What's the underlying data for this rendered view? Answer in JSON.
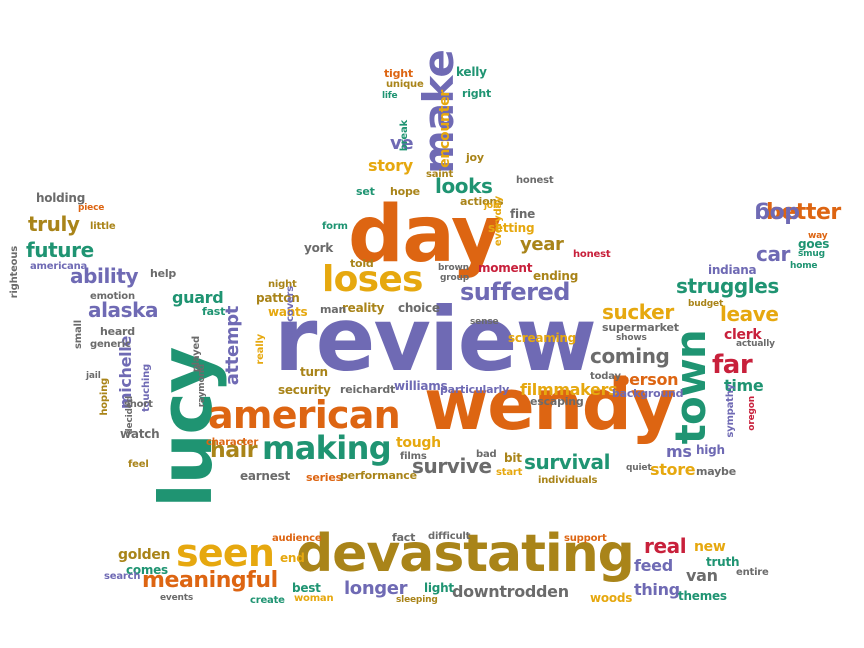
{
  "palette": {
    "purple": "#6f6ab4",
    "orange": "#dd6512",
    "teal": "#1f9472",
    "gold": "#e6a80f",
    "olive": "#a98419",
    "gray": "#6b6b6b",
    "red": "#c8203b"
  },
  "words": [
    {
      "id": "review",
      "text": "review",
      "color": "purple"
    },
    {
      "id": "wendy",
      "text": "wendy",
      "color": "orange"
    },
    {
      "id": "lucy",
      "text": "lucy",
      "color": "teal"
    },
    {
      "id": "day",
      "text": "day",
      "color": "orange"
    },
    {
      "id": "devastating",
      "text": "devastating",
      "color": "olive"
    },
    {
      "id": "american",
      "text": "american",
      "color": "orange"
    },
    {
      "id": "town",
      "text": "town",
      "color": "teal"
    },
    {
      "id": "make",
      "text": "make",
      "color": "purple"
    },
    {
      "id": "loses",
      "text": "loses",
      "color": "gold"
    },
    {
      "id": "making",
      "text": "making",
      "color": "teal"
    },
    {
      "id": "suffered",
      "text": "suffered",
      "color": "purple"
    },
    {
      "id": "seen",
      "text": "seen",
      "color": "gold"
    },
    {
      "id": "meaningful",
      "text": "meaningful",
      "color": "orange"
    },
    {
      "id": "hair",
      "text": "hair",
      "color": "olive"
    },
    {
      "id": "survive",
      "text": "survive",
      "color": "gray"
    },
    {
      "id": "survival",
      "text": "survival",
      "color": "teal"
    },
    {
      "id": "struggles",
      "text": "struggles",
      "color": "teal"
    },
    {
      "id": "sucker",
      "text": "sucker",
      "color": "gold"
    },
    {
      "id": "leave",
      "text": "leave",
      "color": "gold"
    },
    {
      "id": "far",
      "text": "far",
      "color": "red"
    },
    {
      "id": "coming",
      "text": "coming",
      "color": "gray"
    },
    {
      "id": "better",
      "text": "better",
      "color": "orange"
    },
    {
      "id": "dog",
      "text": "dog",
      "color": "purple"
    },
    {
      "id": "car",
      "text": "car",
      "color": "purple"
    },
    {
      "id": "alaska",
      "text": "alaska",
      "color": "purple"
    },
    {
      "id": "ability",
      "text": "ability",
      "color": "purple"
    },
    {
      "id": "truly",
      "text": "truly",
      "color": "olive"
    },
    {
      "id": "future",
      "text": "future",
      "color": "teal"
    },
    {
      "id": "looks",
      "text": "looks",
      "color": "teal"
    },
    {
      "id": "year",
      "text": "year",
      "color": "olive"
    },
    {
      "id": "story",
      "text": "story",
      "color": "gold"
    },
    {
      "id": "ve",
      "text": "ve",
      "color": "purple"
    },
    {
      "id": "encounter",
      "text": "encounter",
      "color": "gold"
    },
    {
      "id": "filmmakers",
      "text": "filmmakers",
      "color": "gold"
    },
    {
      "id": "person",
      "text": "person",
      "color": "orange"
    },
    {
      "id": "ms",
      "text": "ms",
      "color": "purple"
    },
    {
      "id": "store",
      "text": "store",
      "color": "gold"
    },
    {
      "id": "time",
      "text": "time",
      "color": "teal"
    },
    {
      "id": "clerk",
      "text": "clerk",
      "color": "red"
    },
    {
      "id": "michelle",
      "text": "michelle",
      "color": "purple"
    },
    {
      "id": "attempt",
      "text": "attempt",
      "color": "purple"
    },
    {
      "id": "guard",
      "text": "guard",
      "color": "teal"
    },
    {
      "id": "reality",
      "text": "reality",
      "color": "olive"
    },
    {
      "id": "choice",
      "text": "choice",
      "color": "gray"
    },
    {
      "id": "patton",
      "text": "patton",
      "color": "olive"
    },
    {
      "id": "wants",
      "text": "wants",
      "color": "gold"
    },
    {
      "id": "man",
      "text": "man",
      "color": "gray"
    },
    {
      "id": "told",
      "text": "told",
      "color": "olive"
    },
    {
      "id": "york",
      "text": "york",
      "color": "gray"
    },
    {
      "id": "set",
      "text": "set",
      "color": "teal"
    },
    {
      "id": "hope",
      "text": "hope",
      "color": "olive"
    },
    {
      "id": "fine",
      "text": "fine",
      "color": "gray"
    },
    {
      "id": "setting",
      "text": "setting",
      "color": "gold"
    },
    {
      "id": "actions",
      "text": "actions",
      "color": "olive"
    },
    {
      "id": "moment",
      "text": "moment",
      "color": "red"
    },
    {
      "id": "ending",
      "text": "ending",
      "color": "olive"
    },
    {
      "id": "screaming",
      "text": "screaming",
      "color": "gold"
    },
    {
      "id": "tough",
      "text": "tough",
      "color": "gold"
    },
    {
      "id": "bit",
      "text": "bit",
      "color": "olive"
    },
    {
      "id": "watch",
      "text": "watch",
      "color": "gray"
    },
    {
      "id": "longer",
      "text": "longer",
      "color": "purple"
    },
    {
      "id": "downtrodden",
      "text": "downtrodden",
      "color": "gray"
    },
    {
      "id": "woods",
      "text": "woods",
      "color": "gold"
    },
    {
      "id": "real",
      "text": "real",
      "color": "red"
    },
    {
      "id": "new",
      "text": "new",
      "color": "gold"
    },
    {
      "id": "truth",
      "text": "truth",
      "color": "teal"
    },
    {
      "id": "feed",
      "text": "feed",
      "color": "purple"
    },
    {
      "id": "thing",
      "text": "thing",
      "color": "purple"
    },
    {
      "id": "van",
      "text": "van",
      "color": "gray"
    },
    {
      "id": "themes",
      "text": "themes",
      "color": "teal"
    },
    {
      "id": "golden",
      "text": "golden",
      "color": "olive"
    },
    {
      "id": "comes",
      "text": "comes",
      "color": "teal"
    },
    {
      "id": "best",
      "text": "best",
      "color": "teal"
    },
    {
      "id": "light",
      "text": "light",
      "color": "teal"
    },
    {
      "id": "kelly",
      "text": "kelly",
      "color": "teal"
    },
    {
      "id": "right",
      "text": "right",
      "color": "teal"
    },
    {
      "id": "tight",
      "text": "tight",
      "color": "orange"
    },
    {
      "id": "unique",
      "text": "unique",
      "color": "olive"
    },
    {
      "id": "life",
      "text": "life",
      "color": "teal"
    },
    {
      "id": "break",
      "text": "break",
      "color": "teal"
    },
    {
      "id": "joy",
      "text": "joy",
      "color": "olive"
    },
    {
      "id": "saint",
      "text": "saint",
      "color": "olive"
    },
    {
      "id": "everyday",
      "text": "everyday",
      "color": "gold"
    },
    {
      "id": "honest1",
      "text": "honest",
      "color": "gray"
    },
    {
      "id": "job",
      "text": "job",
      "color": "gold"
    },
    {
      "id": "form",
      "text": "form",
      "color": "teal"
    },
    {
      "id": "holding",
      "text": "holding",
      "color": "gray"
    },
    {
      "id": "piece",
      "text": "piece",
      "color": "orange"
    },
    {
      "id": "righteous",
      "text": "righteous",
      "color": "gray"
    },
    {
      "id": "little",
      "text": "little",
      "color": "olive"
    },
    {
      "id": "americana",
      "text": "americana",
      "color": "purple"
    },
    {
      "id": "help",
      "text": "help",
      "color": "gray"
    },
    {
      "id": "emotion",
      "text": "emotion",
      "color": "gray"
    },
    {
      "id": "fast",
      "text": "fast",
      "color": "teal"
    },
    {
      "id": "small",
      "text": "small",
      "color": "gray"
    },
    {
      "id": "heard",
      "text": "heard",
      "color": "gray"
    },
    {
      "id": "generic",
      "text": "generic",
      "color": "gray"
    },
    {
      "id": "touching",
      "text": "touching",
      "color": "purple"
    },
    {
      "id": "hoping",
      "text": "hoping",
      "color": "olive"
    },
    {
      "id": "jail",
      "text": "jail",
      "color": "gray"
    },
    {
      "id": "decided",
      "text": "decided",
      "color": "gray"
    },
    {
      "id": "short",
      "text": "short",
      "color": "gray"
    },
    {
      "id": "played",
      "text": "played",
      "color": "gray"
    },
    {
      "id": "raymond",
      "text": "raymond",
      "color": "gray"
    },
    {
      "id": "really",
      "text": "really",
      "color": "gold"
    },
    {
      "id": "night",
      "text": "night",
      "color": "olive"
    },
    {
      "id": "discovers",
      "text": "discovers",
      "color": "purple"
    },
    {
      "id": "turn",
      "text": "turn",
      "color": "olive"
    },
    {
      "id": "security",
      "text": "security",
      "color": "olive"
    },
    {
      "id": "reichardt",
      "text": "reichardt",
      "color": "gray"
    },
    {
      "id": "williams",
      "text": "williams",
      "color": "purple"
    },
    {
      "id": "particularly",
      "text": "particularly",
      "color": "purple"
    },
    {
      "id": "brown",
      "text": "brown",
      "color": "gray"
    },
    {
      "id": "group",
      "text": "group",
      "color": "gray"
    },
    {
      "id": "sense",
      "text": "sense",
      "color": "gray"
    },
    {
      "id": "honest2",
      "text": "honest",
      "color": "red"
    },
    {
      "id": "escaping",
      "text": "escaping",
      "color": "gray"
    },
    {
      "id": "supermarket",
      "text": "supermarket",
      "color": "gray"
    },
    {
      "id": "shows",
      "text": "shows",
      "color": "gray"
    },
    {
      "id": "today",
      "text": "today",
      "color": "gray"
    },
    {
      "id": "background",
      "text": "background",
      "color": "purple"
    },
    {
      "id": "budget",
      "text": "budget",
      "color": "olive"
    },
    {
      "id": "actually",
      "text": "actually",
      "color": "gray"
    },
    {
      "id": "indiana",
      "text": "indiana",
      "color": "purple"
    },
    {
      "id": "home",
      "text": "home",
      "color": "teal"
    },
    {
      "id": "smug",
      "text": "smug",
      "color": "teal"
    },
    {
      "id": "way",
      "text": "way",
      "color": "orange"
    },
    {
      "id": "goes",
      "text": "goes",
      "color": "teal"
    },
    {
      "id": "sympathy",
      "text": "sympathy",
      "color": "purple"
    },
    {
      "id": "oregon",
      "text": "oregon",
      "color": "red"
    },
    {
      "id": "high",
      "text": "high",
      "color": "purple"
    },
    {
      "id": "maybe",
      "text": "maybe",
      "color": "gray"
    },
    {
      "id": "quiet",
      "text": "quiet",
      "color": "gray"
    },
    {
      "id": "start",
      "text": "start",
      "color": "gold"
    },
    {
      "id": "bad",
      "text": "bad",
      "color": "gray"
    },
    {
      "id": "individuals",
      "text": "individuals",
      "color": "olive"
    },
    {
      "id": "films",
      "text": "films",
      "color": "gray"
    },
    {
      "id": "series",
      "text": "series",
      "color": "orange"
    },
    {
      "id": "performance",
      "text": "performance",
      "color": "olive"
    },
    {
      "id": "earnest",
      "text": "earnest",
      "color": "gray"
    },
    {
      "id": "character",
      "text": "character",
      "color": "orange"
    },
    {
      "id": "feel",
      "text": "feel",
      "color": "olive"
    },
    {
      "id": "audience",
      "text": "audience",
      "color": "orange"
    },
    {
      "id": "fact",
      "text": "fact",
      "color": "gray"
    },
    {
      "id": "difficult",
      "text": "difficult",
      "color": "gray"
    },
    {
      "id": "support",
      "text": "support",
      "color": "orange"
    },
    {
      "id": "end",
      "text": "end",
      "color": "gold"
    },
    {
      "id": "search",
      "text": "search",
      "color": "purple"
    },
    {
      "id": "events",
      "text": "events",
      "color": "gray"
    },
    {
      "id": "create",
      "text": "create",
      "color": "teal"
    },
    {
      "id": "woman",
      "text": "woman",
      "color": "gold"
    },
    {
      "id": "sleeping",
      "text": "sleeping",
      "color": "olive"
    },
    {
      "id": "entire",
      "text": "entire",
      "color": "gray"
    }
  ]
}
